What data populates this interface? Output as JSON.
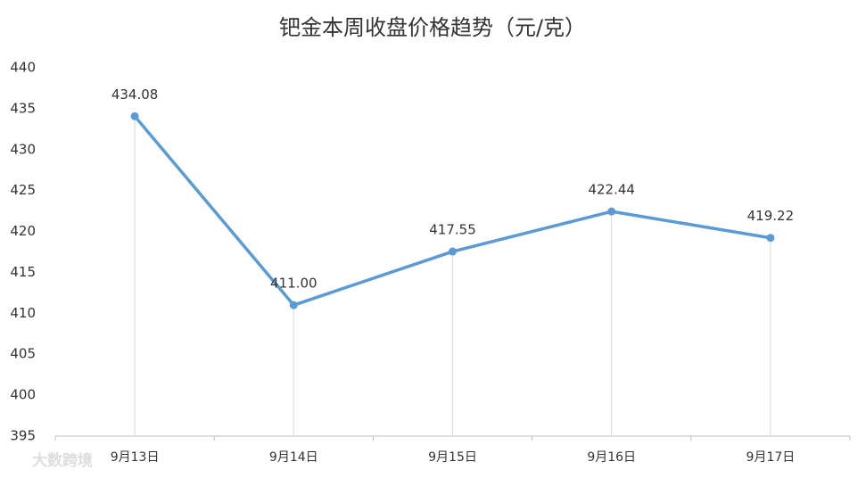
{
  "chart_data": {
    "type": "line",
    "title": "钯金本周收盘价格趋势（元/克）",
    "categories": [
      "9月13日",
      "9月14日",
      "9月15日",
      "9月16日",
      "9月17日"
    ],
    "series": [
      {
        "name": "钯金",
        "color": "#5b9bd5",
        "values": [
          434.08,
          411.0,
          417.55,
          422.44,
          419.22
        ],
        "value_labels": [
          "434.08",
          "411.00",
          "417.55",
          "422.44",
          "419.22"
        ]
      }
    ],
    "ylim": [
      395,
      440
    ],
    "yticks": [
      395,
      400,
      405,
      410,
      415,
      420,
      425,
      430,
      435,
      440
    ],
    "grid": false,
    "drop_lines": true,
    "watermark": "大数跨境"
  }
}
